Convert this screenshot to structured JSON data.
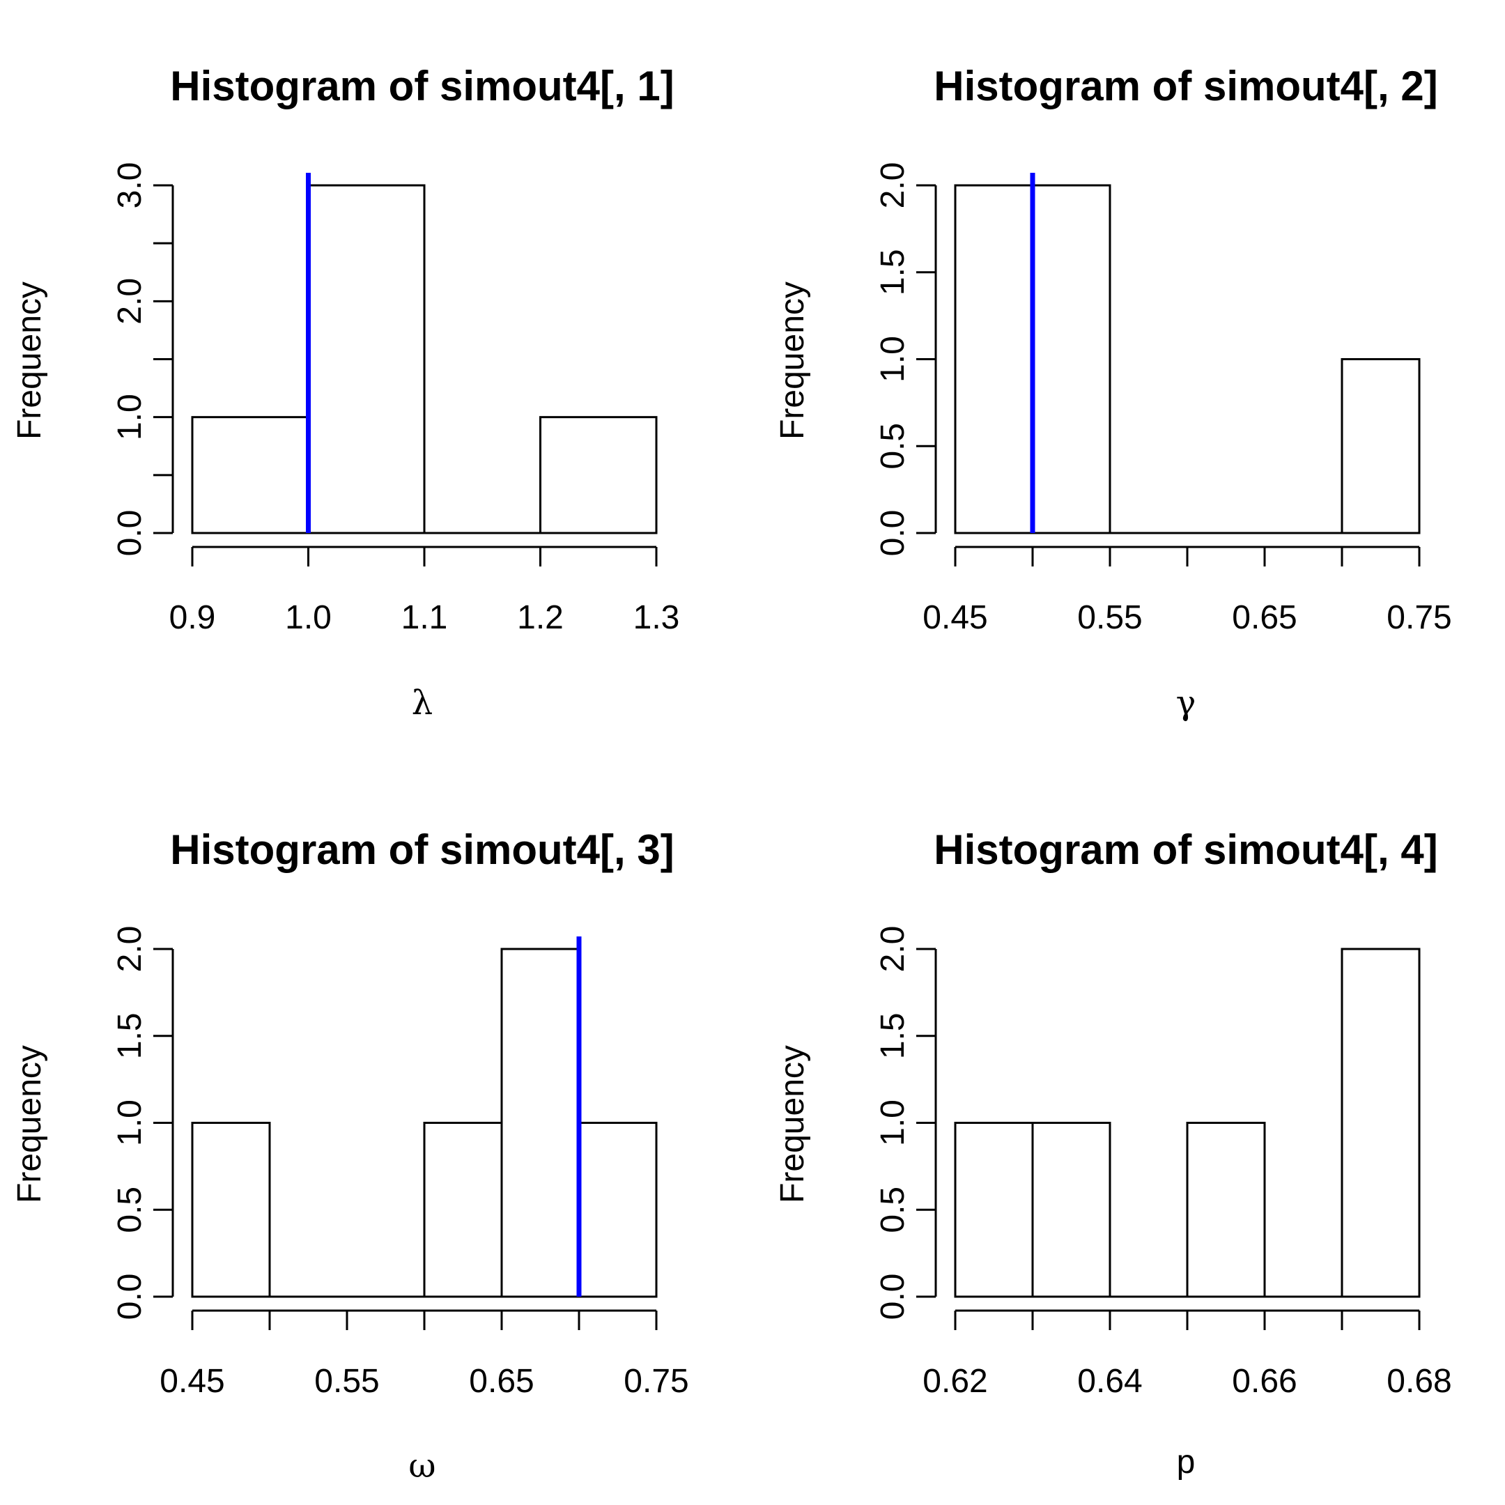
{
  "chart_data": [
    {
      "type": "bar",
      "title": "Histogram of simout4[, 1]",
      "xlabel": "λ",
      "ylabel": "Frequency",
      "breaks": [
        0.9,
        1.0,
        1.1,
        1.2,
        1.3
      ],
      "values": [
        1,
        3,
        0,
        1
      ],
      "xticks": [
        0.9,
        1.0,
        1.1,
        1.2,
        1.3
      ],
      "xtick_labels": [
        "0.9",
        "1.0",
        "1.1",
        "1.2",
        "1.3"
      ],
      "yticks": [
        0,
        0.5,
        1,
        1.5,
        2,
        2.5,
        3
      ],
      "ytick_labels": [
        "0.0",
        "",
        "1.0",
        "",
        "2.0",
        "",
        "3.0"
      ],
      "ylim": [
        0,
        3
      ],
      "xlim": [
        0.9,
        1.3
      ],
      "vline": 1.0,
      "vline_color": "#0000ff"
    },
    {
      "type": "bar",
      "title": "Histogram of simout4[, 2]",
      "xlabel": "γ",
      "ylabel": "Frequency",
      "breaks": [
        0.45,
        0.55,
        0.65,
        0.7,
        0.75
      ],
      "values": [
        2,
        0,
        0,
        1
      ],
      "xticks": [
        0.45,
        0.5,
        0.55,
        0.6,
        0.65,
        0.7,
        0.75
      ],
      "xtick_labels": [
        "0.45",
        "",
        "0.55",
        "",
        "0.65",
        "",
        "0.75"
      ],
      "yticks": [
        0,
        0.5,
        1,
        1.5,
        2
      ],
      "ytick_labels": [
        "0.0",
        "0.5",
        "1.0",
        "1.5",
        "2.0"
      ],
      "ylim": [
        0,
        2
      ],
      "xlim": [
        0.45,
        0.75
      ],
      "vline": 0.5,
      "vline_color": "#0000ff"
    },
    {
      "type": "bar",
      "title": "Histogram of simout4[, 3]",
      "xlabel": "ω",
      "ylabel": "Frequency",
      "breaks": [
        0.45,
        0.5,
        0.55,
        0.6,
        0.65,
        0.7,
        0.75
      ],
      "values": [
        1,
        0,
        0,
        1,
        2,
        1
      ],
      "xticks": [
        0.45,
        0.5,
        0.55,
        0.6,
        0.65,
        0.7,
        0.75
      ],
      "xtick_labels": [
        "0.45",
        "",
        "0.55",
        "",
        "0.65",
        "",
        "0.75"
      ],
      "yticks": [
        0,
        0.5,
        1,
        1.5,
        2
      ],
      "ytick_labels": [
        "0.0",
        "0.5",
        "1.0",
        "1.5",
        "2.0"
      ],
      "ylim": [
        0,
        2
      ],
      "xlim": [
        0.45,
        0.75
      ],
      "vline": 0.7,
      "vline_color": "#0000ff"
    },
    {
      "type": "bar",
      "title": "Histogram of simout4[, 4]",
      "xlabel": "p",
      "ylabel": "Frequency",
      "breaks": [
        0.62,
        0.63,
        0.64,
        0.65,
        0.66,
        0.67,
        0.68
      ],
      "values": [
        1,
        1,
        0,
        1,
        0,
        2
      ],
      "xticks": [
        0.62,
        0.63,
        0.64,
        0.65,
        0.66,
        0.67,
        0.68
      ],
      "xtick_labels": [
        "0.62",
        "",
        "0.64",
        "",
        "0.66",
        "",
        "0.68"
      ],
      "yticks": [
        0,
        0.5,
        1,
        1.5,
        2
      ],
      "ytick_labels": [
        "0.0",
        "0.5",
        "1.0",
        "1.5",
        "2.0"
      ],
      "ylim": [
        0,
        2
      ],
      "xlim": [
        0.62,
        0.68
      ]
    }
  ]
}
